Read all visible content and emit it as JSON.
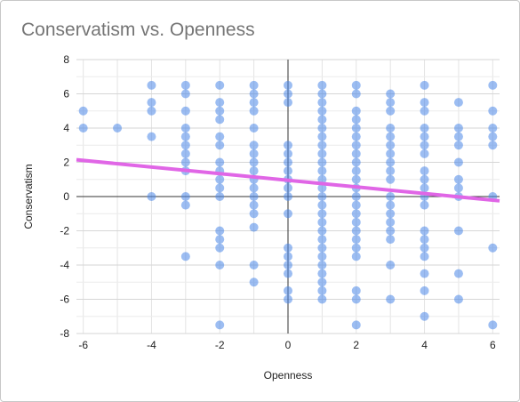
{
  "chart_data": {
    "type": "scatter",
    "title": "Conservatism vs. Openness",
    "xlabel": "Openness",
    "ylabel": "Conservatism",
    "xlim": [
      -6.2,
      6.2
    ],
    "ylim": [
      -8,
      8
    ],
    "xticks": [
      -6,
      -4,
      -2,
      0,
      2,
      4,
      6
    ],
    "yticks": [
      8,
      6,
      4,
      2,
      0,
      -2,
      -4,
      -6,
      -8
    ],
    "grid": true,
    "point_color": "#4a86e8",
    "trend_color": "#e066e6",
    "trendline": {
      "x": [
        -6.2,
        6.2
      ],
      "y": [
        2.15,
        -0.25
      ]
    },
    "points": [
      [
        -6,
        5
      ],
      [
        -6,
        4
      ],
      [
        -5,
        4
      ],
      [
        -4,
        6.5
      ],
      [
        -4,
        5.5
      ],
      [
        -4,
        5
      ],
      [
        -4,
        3.5
      ],
      [
        -4,
        0
      ],
      [
        -3,
        6.5
      ],
      [
        -3,
        6
      ],
      [
        -3,
        5
      ],
      [
        -3,
        4
      ],
      [
        -3,
        3.5
      ],
      [
        -3,
        3
      ],
      [
        -3,
        2.5
      ],
      [
        -3,
        2
      ],
      [
        -3,
        1.5
      ],
      [
        -3,
        0
      ],
      [
        -3,
        -0.5
      ],
      [
        -3,
        -3.5
      ],
      [
        -2,
        6.5
      ],
      [
        -2,
        5.5
      ],
      [
        -2,
        5
      ],
      [
        -2,
        4.5
      ],
      [
        -2,
        3.5
      ],
      [
        -2,
        3
      ],
      [
        -2,
        2
      ],
      [
        -2,
        1.5
      ],
      [
        -2,
        1
      ],
      [
        -2,
        0.5
      ],
      [
        -2,
        0
      ],
      [
        -2,
        -2
      ],
      [
        -2,
        -2.5
      ],
      [
        -2,
        -3
      ],
      [
        -2,
        -4
      ],
      [
        -2,
        -7.5
      ],
      [
        -1,
        6.5
      ],
      [
        -1,
        6
      ],
      [
        -1,
        5.5
      ],
      [
        -1,
        5
      ],
      [
        -1,
        4
      ],
      [
        -1,
        3
      ],
      [
        -1,
        2.5
      ],
      [
        -1,
        2
      ],
      [
        -1,
        1.5
      ],
      [
        -1,
        1
      ],
      [
        -1,
        0.5
      ],
      [
        -1,
        0
      ],
      [
        -1,
        -0.5
      ],
      [
        -1,
        -1
      ],
      [
        -1,
        -1.8
      ],
      [
        -1,
        -4
      ],
      [
        -1,
        -5
      ],
      [
        0,
        6.5
      ],
      [
        0,
        6
      ],
      [
        0,
        5.5
      ],
      [
        0,
        3
      ],
      [
        0,
        2.5
      ],
      [
        0,
        2
      ],
      [
        0,
        1.5
      ],
      [
        0,
        1
      ],
      [
        0,
        0.5
      ],
      [
        0,
        0
      ],
      [
        0,
        -1
      ],
      [
        0,
        -3
      ],
      [
        0,
        -3.5
      ],
      [
        0,
        -4
      ],
      [
        0,
        -4.5
      ],
      [
        0,
        -5.5
      ],
      [
        0,
        -6
      ],
      [
        1,
        6.5
      ],
      [
        1,
        6
      ],
      [
        1,
        5.5
      ],
      [
        1,
        5
      ],
      [
        1,
        4.5
      ],
      [
        1,
        4
      ],
      [
        1,
        3.5
      ],
      [
        1,
        3
      ],
      [
        1,
        2.5
      ],
      [
        1,
        2
      ],
      [
        1,
        1.5
      ],
      [
        1,
        1
      ],
      [
        1,
        0.5
      ],
      [
        1,
        0
      ],
      [
        1,
        -0.5
      ],
      [
        1,
        -1
      ],
      [
        1,
        -1.5
      ],
      [
        1,
        -2
      ],
      [
        1,
        -2.5
      ],
      [
        1,
        -3
      ],
      [
        1,
        -3.5
      ],
      [
        1,
        -4
      ],
      [
        1,
        -4.5
      ],
      [
        1,
        -5
      ],
      [
        1,
        -5.5
      ],
      [
        1,
        -6
      ],
      [
        2,
        6.5
      ],
      [
        2,
        6
      ],
      [
        2,
        5
      ],
      [
        2,
        4.5
      ],
      [
        2,
        4
      ],
      [
        2,
        3.5
      ],
      [
        2,
        3
      ],
      [
        2,
        2.5
      ],
      [
        2,
        2
      ],
      [
        2,
        1.5
      ],
      [
        2,
        1
      ],
      [
        2,
        0.5
      ],
      [
        2,
        0
      ],
      [
        2,
        -0.5
      ],
      [
        2,
        -1
      ],
      [
        2,
        -1.5
      ],
      [
        2,
        -2
      ],
      [
        2,
        -2.5
      ],
      [
        2,
        -3
      ],
      [
        2,
        -3.5
      ],
      [
        2,
        -5.5
      ],
      [
        2,
        -6
      ],
      [
        2,
        -7.5
      ],
      [
        3,
        6
      ],
      [
        3,
        5.5
      ],
      [
        3,
        5
      ],
      [
        3,
        4
      ],
      [
        3,
        3.5
      ],
      [
        3,
        3
      ],
      [
        3,
        2.5
      ],
      [
        3,
        2
      ],
      [
        3,
        1.5
      ],
      [
        3,
        1
      ],
      [
        3,
        0
      ],
      [
        3,
        -0.5
      ],
      [
        3,
        -1
      ],
      [
        3,
        -1.5
      ],
      [
        3,
        -2
      ],
      [
        3,
        -2.5
      ],
      [
        3,
        -4
      ],
      [
        3,
        -6
      ],
      [
        4,
        6.5
      ],
      [
        4,
        5.5
      ],
      [
        4,
        5
      ],
      [
        4,
        4
      ],
      [
        4,
        3.5
      ],
      [
        4,
        3
      ],
      [
        4,
        2.5
      ],
      [
        4,
        1.5
      ],
      [
        4,
        1
      ],
      [
        4,
        0.5
      ],
      [
        4,
        0
      ],
      [
        4,
        -0.5
      ],
      [
        4,
        -2
      ],
      [
        4,
        -2.5
      ],
      [
        4,
        -3
      ],
      [
        4,
        -3.5
      ],
      [
        4,
        -4.5
      ],
      [
        4,
        -5.5
      ],
      [
        4,
        -7
      ],
      [
        5,
        5.5
      ],
      [
        5,
        4
      ],
      [
        5,
        3.5
      ],
      [
        5,
        3
      ],
      [
        5,
        2
      ],
      [
        5,
        1
      ],
      [
        5,
        0.5
      ],
      [
        5,
        0
      ],
      [
        5,
        -2
      ],
      [
        5,
        -4.5
      ],
      [
        5,
        -6
      ],
      [
        6,
        6.5
      ],
      [
        6,
        5
      ],
      [
        6,
        4
      ],
      [
        6,
        3.5
      ],
      [
        6,
        3
      ],
      [
        6,
        0
      ],
      [
        6,
        -3
      ],
      [
        6,
        -7.5
      ]
    ]
  }
}
